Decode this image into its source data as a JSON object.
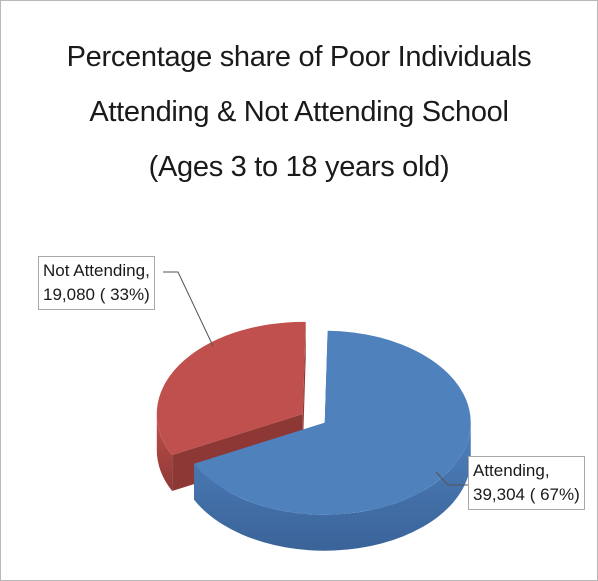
{
  "chart_data": {
    "type": "pie",
    "title": "Percentage share of Poor Individuals Attending & Not Attending School (Ages 3 to 18 years old)",
    "title_lines": [
      "Percentage share of Poor Individuals",
      "Attending & Not Attending School",
      "(Ages 3 to 18 years old)"
    ],
    "legend": "none",
    "style": "3d-exploded",
    "slices": [
      {
        "category": "Attending",
        "value": 39304,
        "percent": 67,
        "label_lines": [
          "Attending,",
          "39,304 ( 67%)"
        ],
        "color": "#4F81BD",
        "side_color": "#3A6399"
      },
      {
        "category": "Not Attending",
        "value": 19080,
        "percent": 33,
        "label_lines": [
          "Not Attending,",
          "19,080 ( 33%)"
        ],
        "color": "#C0504D",
        "side_color": "#8E3836"
      }
    ]
  }
}
